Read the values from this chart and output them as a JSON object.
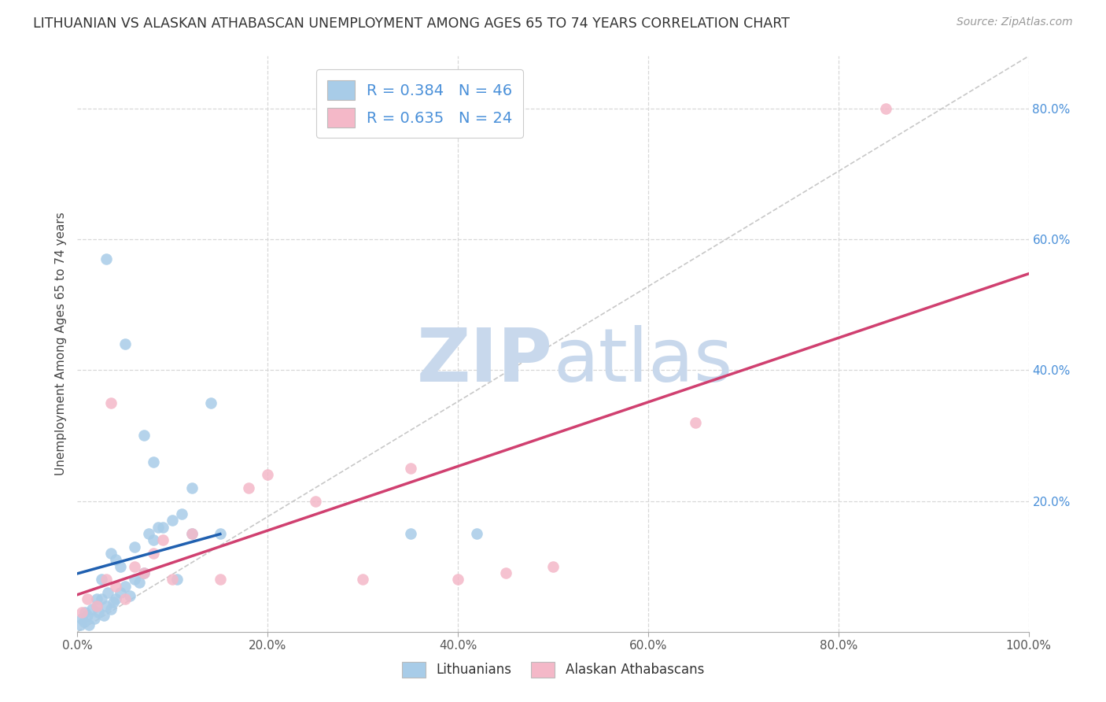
{
  "title": "LITHUANIAN VS ALASKAN ATHABASCAN UNEMPLOYMENT AMONG AGES 65 TO 74 YEARS CORRELATION CHART",
  "source": "Source: ZipAtlas.com",
  "ylabel": "Unemployment Among Ages 65 to 74 years",
  "legend_bottom": [
    "Lithuanians",
    "Alaskan Athabascans"
  ],
  "R_blue": 0.384,
  "N_blue": 46,
  "R_pink": 0.635,
  "N_pink": 24,
  "blue_color": "#a8cce8",
  "pink_color": "#f4b8c8",
  "blue_line_color": "#2060b0",
  "pink_line_color": "#d04070",
  "grid_color": "#d8d8d8",
  "diag_color": "#c8c8c8",
  "xlim": [
    0,
    100
  ],
  "ylim": [
    0,
    88
  ],
  "xticks": [
    0,
    20,
    40,
    60,
    80,
    100
  ],
  "yticks": [
    0,
    20,
    40,
    60,
    80
  ],
  "xticklabels": [
    "0.0%",
    "20.0%",
    "40.0%",
    "60.0%",
    "80.0%",
    "100.0%"
  ],
  "yticklabels": [
    "",
    "20.0%",
    "40.0%",
    "60.0%",
    "80.0%"
  ],
  "blue_x": [
    0.3,
    0.5,
    0.7,
    0.8,
    1.0,
    1.2,
    1.5,
    1.8,
    2.0,
    2.2,
    2.5,
    2.8,
    3.0,
    3.2,
    3.5,
    3.8,
    4.0,
    4.5,
    5.0,
    5.5,
    6.0,
    6.5,
    7.0,
    7.5,
    8.0,
    9.0,
    10.0,
    11.0,
    12.0,
    14.0,
    3.0,
    5.0,
    7.0,
    8.0,
    12.0,
    15.0,
    35.0,
    42.0,
    2.0,
    3.5,
    4.5,
    6.0,
    8.5,
    10.5,
    2.5,
    4.0
  ],
  "blue_y": [
    1.0,
    2.0,
    1.5,
    3.0,
    2.5,
    1.0,
    3.5,
    2.0,
    4.0,
    3.0,
    5.0,
    2.5,
    4.0,
    6.0,
    3.5,
    4.5,
    5.0,
    6.0,
    7.0,
    5.5,
    8.0,
    7.5,
    9.0,
    15.0,
    14.0,
    16.0,
    17.0,
    18.0,
    22.0,
    35.0,
    57.0,
    44.0,
    30.0,
    26.0,
    15.0,
    15.0,
    15.0,
    15.0,
    5.0,
    12.0,
    10.0,
    13.0,
    16.0,
    8.0,
    8.0,
    11.0
  ],
  "pink_x": [
    0.5,
    1.0,
    2.0,
    3.0,
    4.0,
    5.0,
    6.0,
    7.0,
    8.0,
    9.0,
    10.0,
    12.0,
    15.0,
    18.0,
    20.0,
    25.0,
    30.0,
    35.0,
    40.0,
    45.0,
    50.0,
    65.0,
    85.0,
    3.5
  ],
  "pink_y": [
    3.0,
    5.0,
    4.0,
    8.0,
    7.0,
    5.0,
    10.0,
    9.0,
    12.0,
    14.0,
    8.0,
    15.0,
    8.0,
    22.0,
    24.0,
    20.0,
    8.0,
    25.0,
    8.0,
    9.0,
    10.0,
    32.0,
    80.0,
    35.0
  ]
}
